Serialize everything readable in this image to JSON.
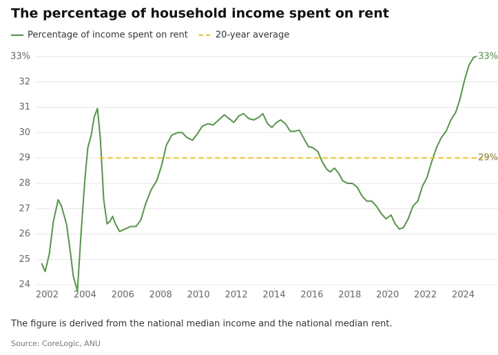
{
  "chart_data": {
    "type": "line",
    "title": "The percentage of household income spent on rent",
    "note": "The figure is derived from the national median income and the national median rent.",
    "source": "Source: CoreLogic, ANU",
    "xlim": [
      2001.4,
      2025
    ],
    "xticks": [
      2002,
      2004,
      2006,
      2008,
      2010,
      2012,
      2014,
      2016,
      2018,
      2020,
      2022,
      2024
    ],
    "ylim": [
      23.7,
      33.2
    ],
    "yticks": [
      24,
      25,
      26,
      27,
      28,
      29,
      30,
      31,
      32,
      {
        "value": 33,
        "label": "33%"
      }
    ],
    "grid": true,
    "series": [
      {
        "name": "Percentage of income spent on rent",
        "color": "#4c9a3f",
        "dashed": false,
        "end_label": "33%",
        "x": [
          2001.71,
          2001.89,
          2002.11,
          2002.33,
          2002.58,
          2002.76,
          2003.02,
          2003.2,
          2003.38,
          2003.6,
          2003.79,
          2004.0,
          2004.15,
          2004.33,
          2004.48,
          2004.66,
          2004.81,
          2004.99,
          2005.17,
          2005.32,
          2005.46,
          2005.61,
          2005.83,
          2006.12,
          2006.41,
          2006.7,
          2006.95,
          2007.21,
          2007.5,
          2007.79,
          2008.05,
          2008.3,
          2008.59,
          2008.89,
          2009.14,
          2009.4,
          2009.69,
          2009.94,
          2010.2,
          2010.49,
          2010.78,
          2011.07,
          2011.36,
          2011.62,
          2011.87,
          2012.13,
          2012.38,
          2012.67,
          2012.93,
          2013.18,
          2013.4,
          2013.66,
          2013.88,
          2014.13,
          2014.35,
          2014.6,
          2014.86,
          2015.08,
          2015.33,
          2015.55,
          2015.81,
          2016.06,
          2016.32,
          2016.54,
          2016.79,
          2016.97,
          2017.19,
          2017.41,
          2017.63,
          2017.88,
          2018.14,
          2018.39,
          2018.65,
          2018.9,
          2019.16,
          2019.41,
          2019.67,
          2019.92,
          2020.18,
          2020.4,
          2020.62,
          2020.83,
          2021.09,
          2021.34,
          2021.6,
          2021.85,
          2022.07,
          2022.33,
          2022.58,
          2022.84,
          2023.09,
          2023.35,
          2023.6,
          2023.82,
          2024.08,
          2024.3,
          2024.55,
          2024.7
        ],
        "values": [
          24.85,
          24.52,
          25.2,
          26.5,
          27.35,
          27.1,
          26.4,
          25.45,
          24.35,
          23.75,
          26.0,
          28.2,
          29.4,
          29.9,
          30.6,
          30.95,
          29.8,
          27.35,
          26.4,
          26.5,
          26.7,
          26.4,
          26.1,
          26.2,
          26.3,
          26.3,
          26.55,
          27.2,
          27.75,
          28.1,
          28.7,
          29.5,
          29.9,
          30.0,
          30.0,
          29.8,
          29.7,
          29.95,
          30.25,
          30.35,
          30.3,
          30.5,
          30.7,
          30.55,
          30.4,
          30.65,
          30.75,
          30.55,
          30.5,
          30.6,
          30.75,
          30.35,
          30.2,
          30.4,
          30.5,
          30.35,
          30.05,
          30.05,
          30.1,
          29.8,
          29.45,
          29.4,
          29.25,
          28.85,
          28.55,
          28.45,
          28.6,
          28.4,
          28.1,
          28.0,
          28.0,
          27.85,
          27.5,
          27.3,
          27.3,
          27.1,
          26.8,
          26.6,
          26.75,
          26.4,
          26.2,
          26.25,
          26.6,
          27.1,
          27.3,
          27.9,
          28.2,
          28.85,
          29.4,
          29.8,
          30.05,
          30.5,
          30.8,
          31.3,
          32.1,
          32.65,
          32.97,
          33.0
        ]
      },
      {
        "name": "20-year average",
        "color": "#f2c200",
        "dashed": true,
        "end_label": "29%",
        "x": [
          2004.77,
          2025
        ],
        "values": [
          29,
          29
        ]
      }
    ]
  }
}
